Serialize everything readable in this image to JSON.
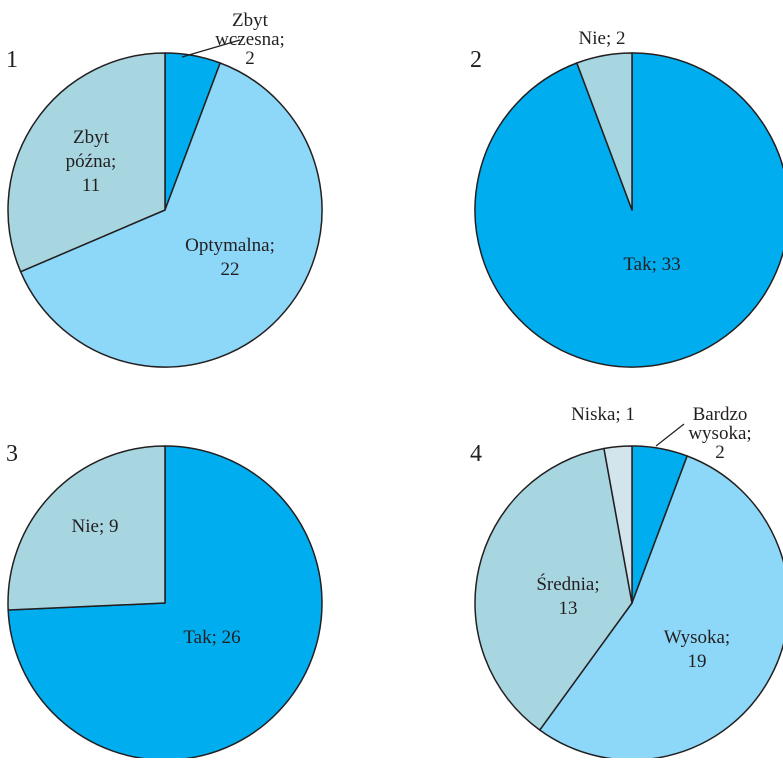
{
  "colors": {
    "dark_blue": "#00aeef",
    "light_blue": "#8dd8f8",
    "grey_blue": "#a7d5e0",
    "pale_grey": "#d2e4ec",
    "stroke": "#231f20"
  },
  "chart_data": [
    {
      "type": "pie",
      "panel_number": "1",
      "slices": [
        {
          "name": "Zbyt wczesna",
          "value": 2,
          "color": "#00aeef",
          "label_lines": [
            "Zbyt",
            "wczesna;",
            "2"
          ]
        },
        {
          "name": "Optymalna",
          "value": 22,
          "color": "#8dd8f8",
          "label_lines": [
            "Optymalna;",
            "22"
          ]
        },
        {
          "name": "Zbyt późna",
          "value": 11,
          "color": "#a7d5e0",
          "label_lines": [
            "Zbyt",
            "późna;",
            "11"
          ]
        }
      ]
    },
    {
      "type": "pie",
      "panel_number": "2",
      "slices": [
        {
          "name": "Tak",
          "value": 33,
          "color": "#00aeef",
          "label_lines": [
            "Tak; 33"
          ]
        },
        {
          "name": "Nie",
          "value": 2,
          "color": "#a7d5e0",
          "label_lines": [
            "Nie; 2"
          ]
        }
      ]
    },
    {
      "type": "pie",
      "panel_number": "3",
      "slices": [
        {
          "name": "Tak",
          "value": 26,
          "color": "#00aeef",
          "label_lines": [
            "Tak; 26"
          ]
        },
        {
          "name": "Nie",
          "value": 9,
          "color": "#a7d5e0",
          "label_lines": [
            "Nie; 9"
          ]
        }
      ]
    },
    {
      "type": "pie",
      "panel_number": "4",
      "slices": [
        {
          "name": "Bardzo wysoka",
          "value": 2,
          "color": "#00aeef",
          "label_lines": [
            "Bardzo",
            "wysoka;",
            "2"
          ]
        },
        {
          "name": "Wysoka",
          "value": 19,
          "color": "#8dd8f8",
          "label_lines": [
            "Wysoka;",
            "19"
          ]
        },
        {
          "name": "Średnia",
          "value": 13,
          "color": "#a7d5e0",
          "label_lines": [
            "Średnia;",
            "13"
          ]
        },
        {
          "name": "Niska",
          "value": 1,
          "color": "#d2e4ec",
          "label_lines": [
            "Niska; 1"
          ]
        }
      ]
    }
  ]
}
